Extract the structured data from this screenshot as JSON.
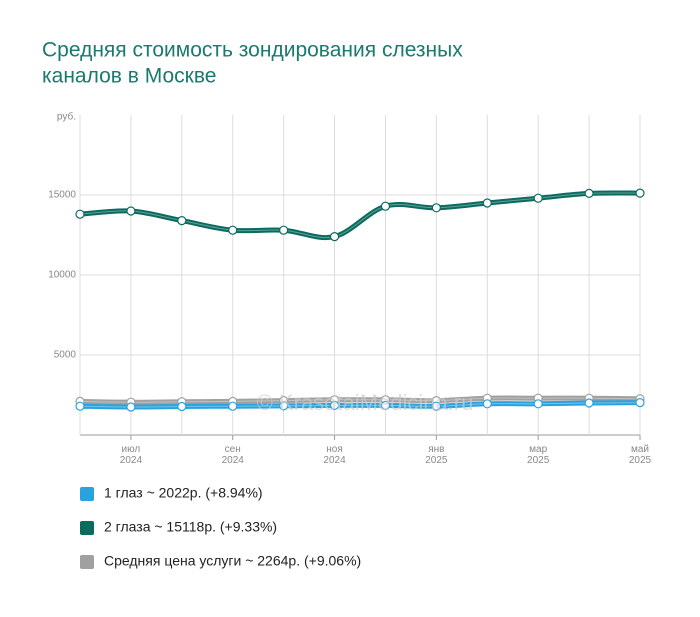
{
  "chart_data": {
    "type": "line",
    "title": [
      "Средняя стоимость зондирования слезных",
      "каналов в Москве"
    ],
    "y_label": "руб.",
    "watermark": "© KrasotaiMedicina.ru",
    "categories": [
      null,
      "июл 2024",
      null,
      "сен 2024",
      null,
      "ноя 2024",
      null,
      "янв 2025",
      null,
      "мар 2025",
      null,
      "май 2025"
    ],
    "ylim": [
      0,
      20000
    ],
    "yticks": [
      5000,
      10000,
      15000
    ],
    "grid": true,
    "series": [
      {
        "name": "1 глаз ~ 2022р. (+8.94%)",
        "color": "#29a3e0",
        "values": [
          1800,
          1750,
          1780,
          1800,
          1820,
          1850,
          1850,
          1800,
          1950,
          1950,
          2000,
          2022
        ]
      },
      {
        "name": "2 глаза ~ 15118р. (+9.33%)",
        "color": "#0b6b5f",
        "values": [
          13800,
          14000,
          13400,
          12800,
          12800,
          12400,
          14300,
          14200,
          14500,
          14800,
          15100,
          15118
        ]
      },
      {
        "name": "Средняя цена услуги ~ 2264р. (+9.06%)",
        "color": "#a0a0a0",
        "values": [
          2100,
          2050,
          2080,
          2100,
          2150,
          2200,
          2200,
          2150,
          2300,
          2300,
          2300,
          2264
        ]
      }
    ]
  }
}
